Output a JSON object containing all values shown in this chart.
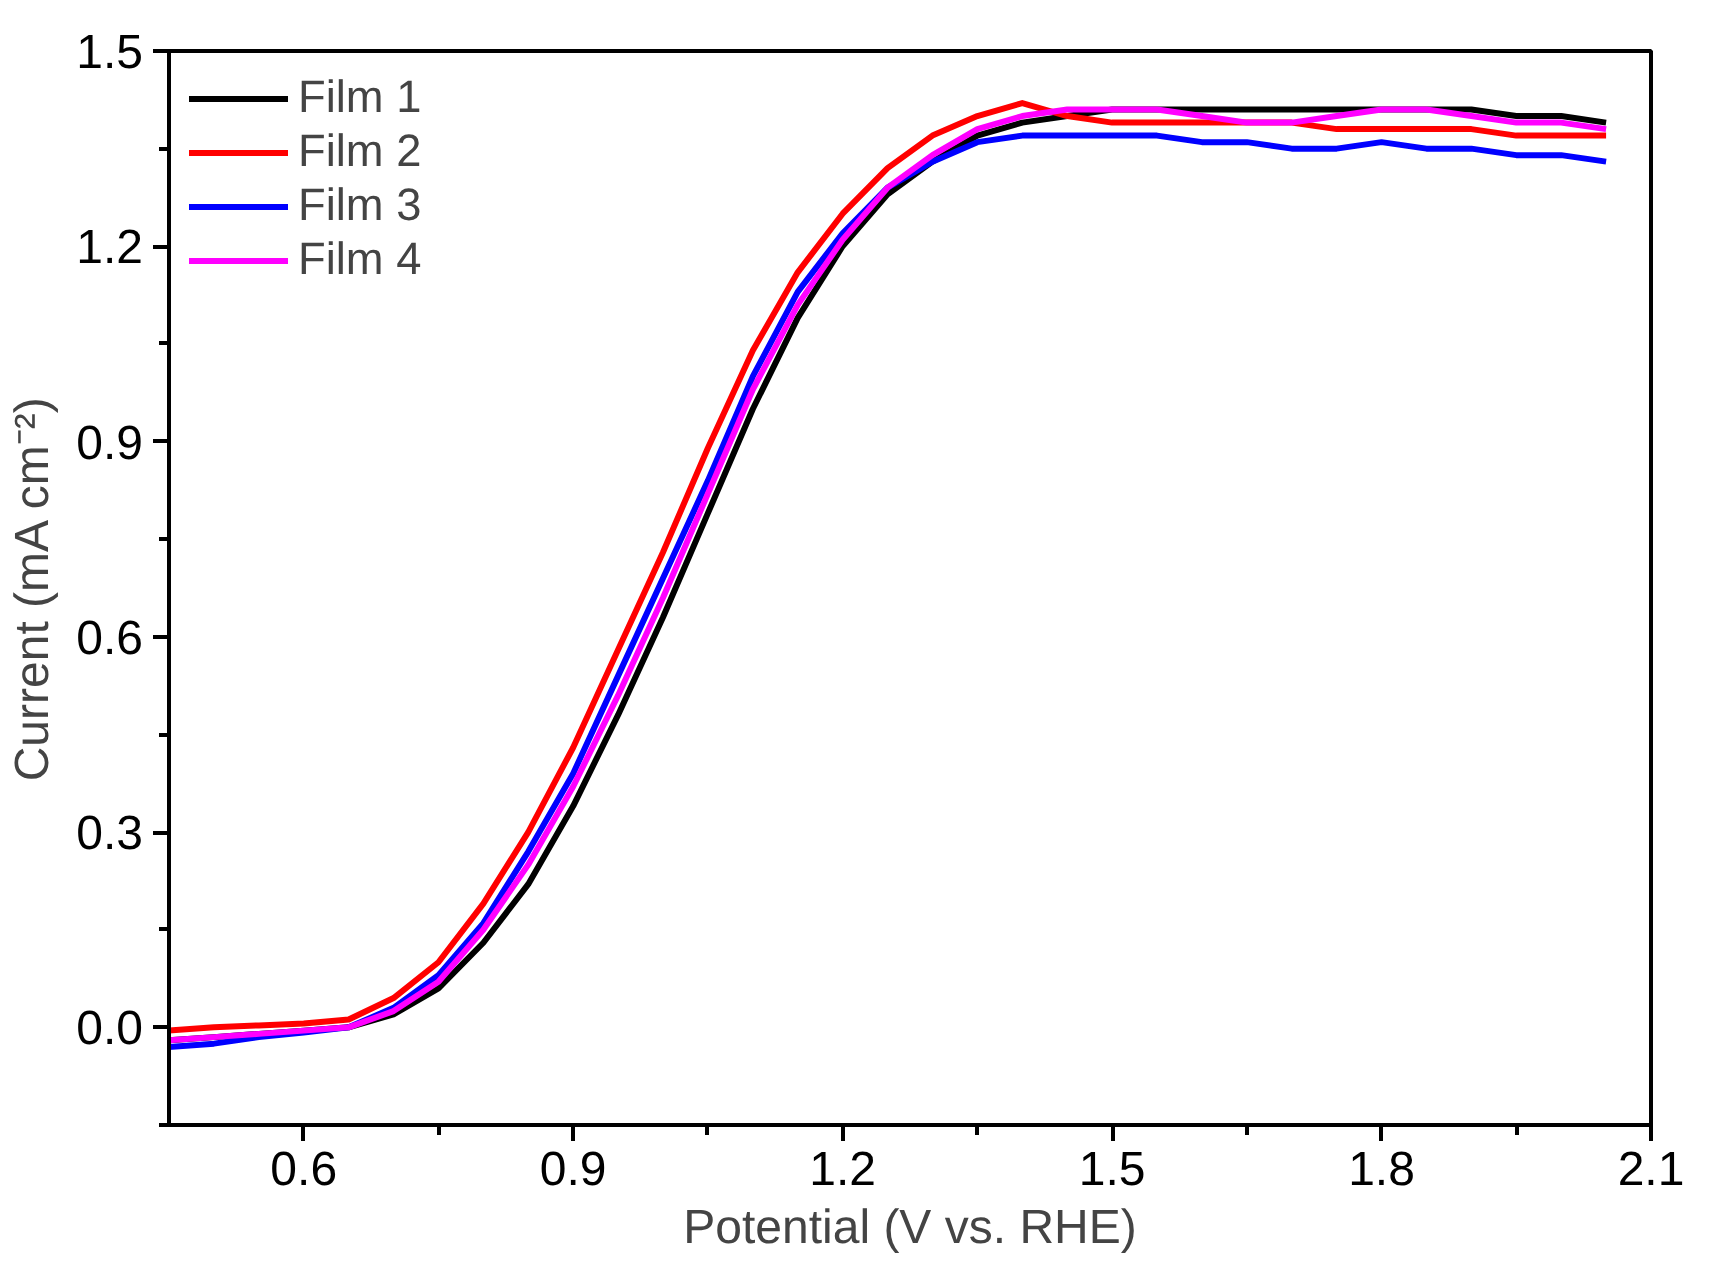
{
  "chart_data": {
    "type": "line",
    "xlabel": "Potential (V vs. RHE)",
    "ylabel": "Current (mA cm⁻²)",
    "x": [
      0.45,
      0.5,
      0.55,
      0.6,
      0.65,
      0.7,
      0.75,
      0.8,
      0.85,
      0.9,
      0.95,
      1.0,
      1.05,
      1.1,
      1.15,
      1.2,
      1.25,
      1.3,
      1.35,
      1.4,
      1.45,
      1.5,
      1.55,
      1.6,
      1.65,
      1.7,
      1.75,
      1.8,
      1.85,
      1.9,
      1.95,
      2.0,
      2.05
    ],
    "series": [
      {
        "name": "Film 1",
        "color": "#000000",
        "values": [
          -0.02,
          -0.015,
          -0.01,
          -0.005,
          0.0,
          0.02,
          0.06,
          0.13,
          0.22,
          0.34,
          0.48,
          0.63,
          0.79,
          0.95,
          1.09,
          1.2,
          1.28,
          1.33,
          1.37,
          1.39,
          1.4,
          1.41,
          1.41,
          1.41,
          1.41,
          1.41,
          1.41,
          1.41,
          1.41,
          1.41,
          1.4,
          1.4,
          1.39
        ]
      },
      {
        "name": "Film 2",
        "color": "#ff0000",
        "values": [
          -0.005,
          0.0,
          0.003,
          0.006,
          0.012,
          0.045,
          0.1,
          0.19,
          0.3,
          0.43,
          0.58,
          0.73,
          0.89,
          1.04,
          1.16,
          1.25,
          1.32,
          1.37,
          1.4,
          1.42,
          1.4,
          1.39,
          1.39,
          1.39,
          1.39,
          1.39,
          1.38,
          1.38,
          1.38,
          1.38,
          1.37,
          1.37,
          1.37
        ]
      },
      {
        "name": "Film 3",
        "color": "#0000ff",
        "values": [
          -0.03,
          -0.025,
          -0.015,
          -0.008,
          0.0,
          0.03,
          0.08,
          0.16,
          0.27,
          0.39,
          0.54,
          0.69,
          0.84,
          1.0,
          1.13,
          1.22,
          1.29,
          1.33,
          1.36,
          1.37,
          1.37,
          1.37,
          1.37,
          1.36,
          1.36,
          1.35,
          1.35,
          1.36,
          1.35,
          1.35,
          1.34,
          1.34,
          1.33
        ]
      },
      {
        "name": "Film 4",
        "color": "#ff00ff",
        "values": [
          -0.02,
          -0.015,
          -0.01,
          -0.005,
          0.0,
          0.025,
          0.07,
          0.15,
          0.25,
          0.37,
          0.51,
          0.66,
          0.82,
          0.98,
          1.11,
          1.21,
          1.29,
          1.34,
          1.38,
          1.4,
          1.41,
          1.41,
          1.41,
          1.4,
          1.39,
          1.39,
          1.4,
          1.41,
          1.41,
          1.4,
          1.39,
          1.39,
          1.38
        ]
      }
    ],
    "xlim": [
      0.45,
      2.1
    ],
    "ylim": [
      -0.15,
      1.5
    ],
    "xticks": [
      0.6,
      0.9,
      1.2,
      1.5,
      1.8,
      2.1
    ],
    "yticks": [
      {
        "value": 0,
        "label": "0.0"
      },
      0.3,
      0.6,
      0.9,
      1.2,
      1.5
    ],
    "grid": false,
    "legend": "top left",
    "marker": "none",
    "line_style": "solid"
  }
}
